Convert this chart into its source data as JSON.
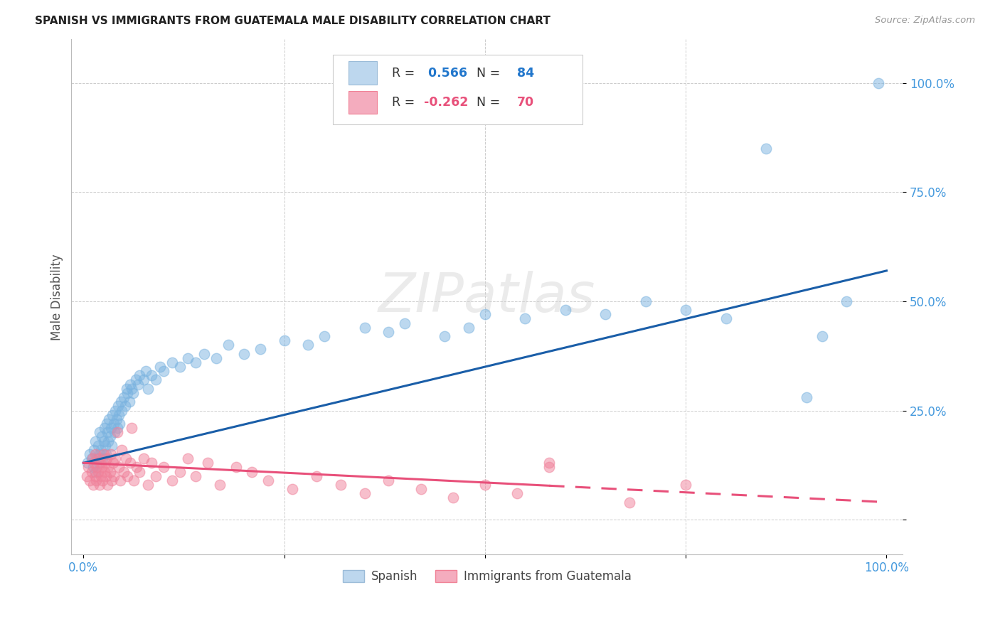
{
  "title": "SPANISH VS IMMIGRANTS FROM GUATEMALA MALE DISABILITY CORRELATION CHART",
  "source": "Source: ZipAtlas.com",
  "ylabel": "Male Disability",
  "series1_label": "Spanish",
  "series2_label": "Immigrants from Guatemala",
  "R1": 0.566,
  "N1": 84,
  "R2": -0.262,
  "N2": 70,
  "watermark": "ZIPatlas",
  "blue_color": "#7AB3E0",
  "pink_color": "#F0819A",
  "blue_line_color": "#1A5EA8",
  "pink_line_color": "#E8507A",
  "blue_legend_fill": "#BDD7EE",
  "pink_legend_fill": "#F4ACBE",
  "series1_x": [
    0.005,
    0.008,
    0.01,
    0.012,
    0.013,
    0.015,
    0.015,
    0.017,
    0.018,
    0.019,
    0.02,
    0.02,
    0.022,
    0.023,
    0.024,
    0.025,
    0.026,
    0.027,
    0.028,
    0.029,
    0.03,
    0.031,
    0.032,
    0.033,
    0.034,
    0.035,
    0.036,
    0.038,
    0.039,
    0.04,
    0.041,
    0.042,
    0.043,
    0.044,
    0.045,
    0.047,
    0.048,
    0.05,
    0.052,
    0.054,
    0.055,
    0.057,
    0.058,
    0.06,
    0.062,
    0.065,
    0.068,
    0.07,
    0.075,
    0.078,
    0.08,
    0.085,
    0.09,
    0.095,
    0.1,
    0.11,
    0.12,
    0.13,
    0.14,
    0.15,
    0.165,
    0.18,
    0.2,
    0.22,
    0.25,
    0.28,
    0.3,
    0.35,
    0.38,
    0.4,
    0.45,
    0.48,
    0.5,
    0.55,
    0.6,
    0.65,
    0.7,
    0.75,
    0.8,
    0.85,
    0.9,
    0.92,
    0.95,
    0.99
  ],
  "series1_y": [
    0.13,
    0.15,
    0.14,
    0.12,
    0.16,
    0.11,
    0.18,
    0.14,
    0.17,
    0.13,
    0.15,
    0.2,
    0.16,
    0.19,
    0.14,
    0.18,
    0.21,
    0.17,
    0.15,
    0.22,
    0.2,
    0.18,
    0.23,
    0.19,
    0.21,
    0.17,
    0.24,
    0.22,
    0.2,
    0.25,
    0.23,
    0.21,
    0.26,
    0.24,
    0.22,
    0.27,
    0.25,
    0.28,
    0.26,
    0.3,
    0.29,
    0.27,
    0.31,
    0.3,
    0.29,
    0.32,
    0.31,
    0.33,
    0.32,
    0.34,
    0.3,
    0.33,
    0.32,
    0.35,
    0.34,
    0.36,
    0.35,
    0.37,
    0.36,
    0.38,
    0.37,
    0.4,
    0.38,
    0.39,
    0.41,
    0.4,
    0.42,
    0.44,
    0.43,
    0.45,
    0.42,
    0.44,
    0.47,
    0.46,
    0.48,
    0.47,
    0.5,
    0.48,
    0.46,
    0.85,
    0.28,
    0.42,
    0.5,
    1.0
  ],
  "series2_x": [
    0.004,
    0.006,
    0.008,
    0.01,
    0.011,
    0.012,
    0.013,
    0.015,
    0.015,
    0.016,
    0.017,
    0.018,
    0.019,
    0.02,
    0.021,
    0.022,
    0.023,
    0.024,
    0.025,
    0.026,
    0.027,
    0.028,
    0.029,
    0.03,
    0.031,
    0.033,
    0.034,
    0.035,
    0.037,
    0.038,
    0.04,
    0.042,
    0.044,
    0.046,
    0.048,
    0.05,
    0.053,
    0.055,
    0.058,
    0.06,
    0.063,
    0.066,
    0.07,
    0.075,
    0.08,
    0.085,
    0.09,
    0.1,
    0.11,
    0.12,
    0.13,
    0.14,
    0.155,
    0.17,
    0.19,
    0.21,
    0.23,
    0.26,
    0.29,
    0.32,
    0.35,
    0.38,
    0.42,
    0.46,
    0.5,
    0.54,
    0.58,
    0.68,
    0.75,
    0.58
  ],
  "series2_y": [
    0.1,
    0.12,
    0.09,
    0.11,
    0.14,
    0.08,
    0.13,
    0.1,
    0.15,
    0.09,
    0.12,
    0.11,
    0.14,
    0.08,
    0.13,
    0.1,
    0.12,
    0.09,
    0.15,
    0.11,
    0.13,
    0.1,
    0.14,
    0.08,
    0.12,
    0.11,
    0.15,
    0.09,
    0.13,
    0.1,
    0.14,
    0.2,
    0.12,
    0.09,
    0.16,
    0.11,
    0.14,
    0.1,
    0.13,
    0.21,
    0.09,
    0.12,
    0.11,
    0.14,
    0.08,
    0.13,
    0.1,
    0.12,
    0.09,
    0.11,
    0.14,
    0.1,
    0.13,
    0.08,
    0.12,
    0.11,
    0.09,
    0.07,
    0.1,
    0.08,
    0.06,
    0.09,
    0.07,
    0.05,
    0.08,
    0.06,
    0.12,
    0.04,
    0.08,
    0.13
  ]
}
